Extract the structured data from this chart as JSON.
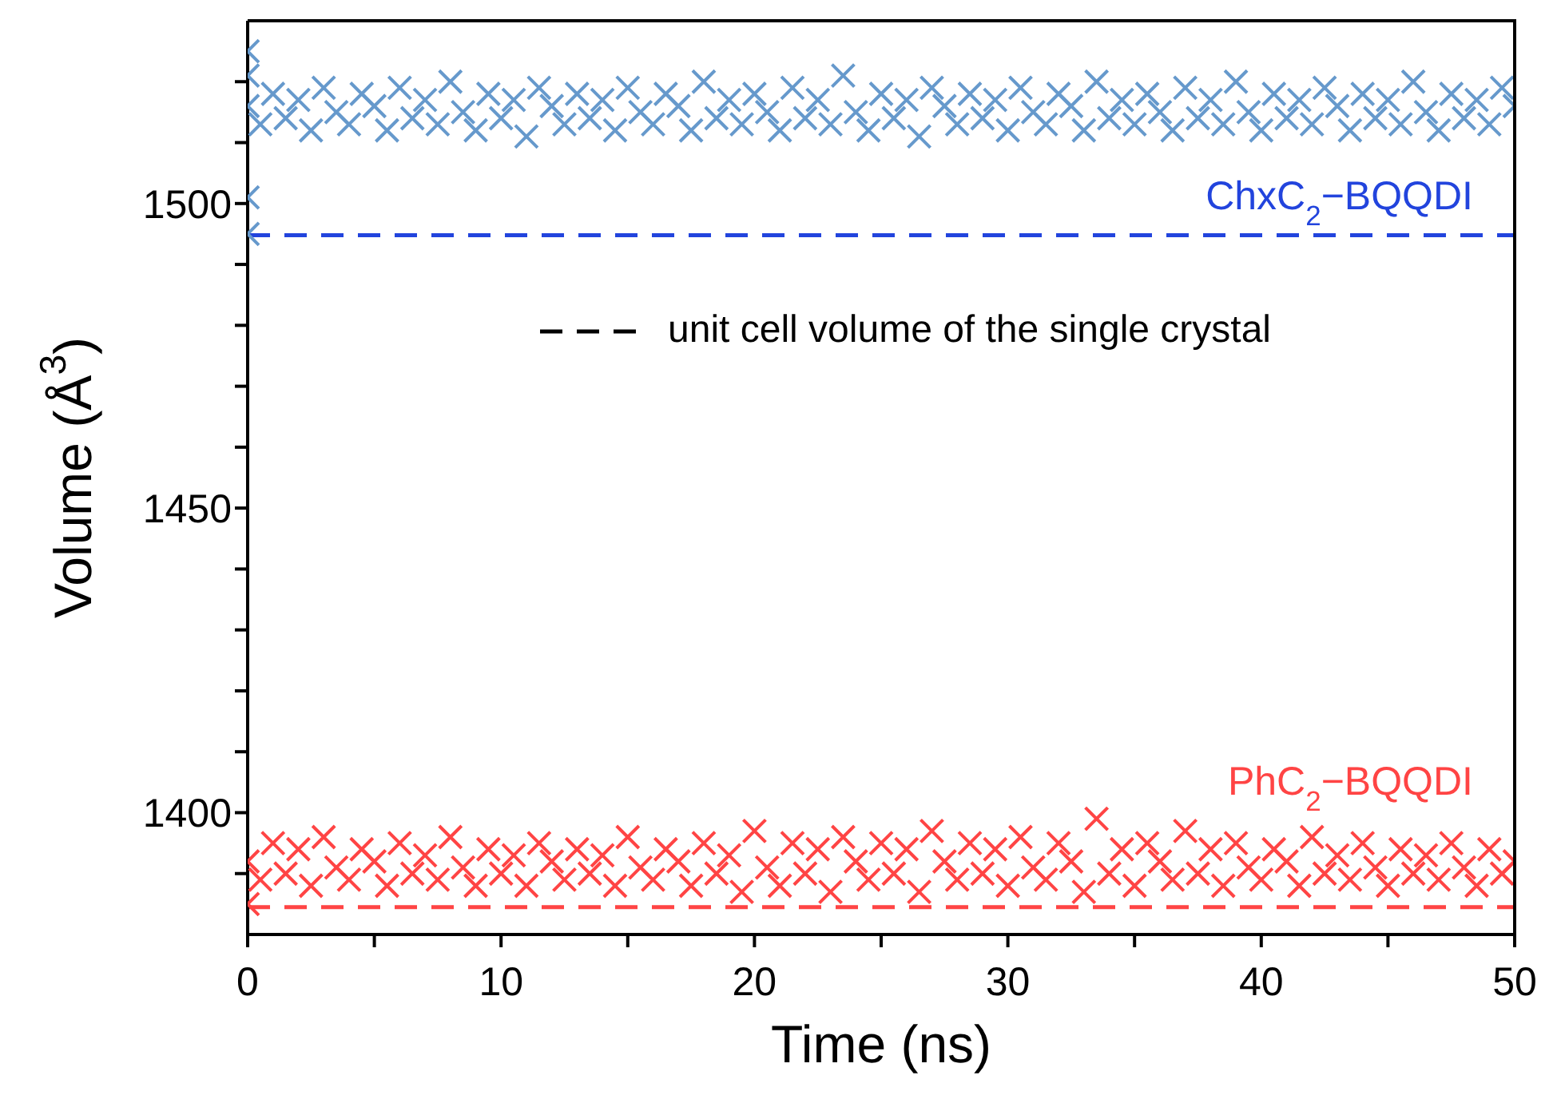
{
  "chart_data": {
    "type": "scatter",
    "xlabel": "Time (ns)",
    "ylabel": "Volume (Å$^{3}$)",
    "xlim": [
      0,
      50
    ],
    "ylim": [
      1380,
      1530
    ],
    "xticks": [
      0,
      {
        "value": 5,
        "label": null
      },
      10,
      {
        "value": 15,
        "label": null
      },
      20,
      {
        "value": 25,
        "label": null
      },
      30,
      {
        "value": 35,
        "label": null
      },
      40,
      {
        "value": 45,
        "label": null
      },
      50
    ],
    "yticks": [
      {
        "value": 1390,
        "label": null
      },
      1400,
      {
        "value": 1410,
        "label": null
      },
      {
        "value": 1420,
        "label": null
      },
      {
        "value": 1430,
        "label": null
      },
      {
        "value": 1440,
        "label": null
      },
      1450,
      {
        "value": 1460,
        "label": null
      },
      {
        "value": 1470,
        "label": null
      },
      {
        "value": 1480,
        "label": null
      },
      {
        "value": 1490,
        "label": null
      },
      1500,
      {
        "value": 1510,
        "label": null
      },
      {
        "value": 1520,
        "label": null
      }
    ],
    "marker": "cross",
    "series": [
      {
        "name": "ChxC$_{2}$−BQQDI",
        "color": "#6699cc",
        "x": [
          0,
          0,
          0,
          0,
          0,
          0.5,
          1,
          1.5,
          2,
          2.5,
          3,
          3.5,
          4,
          4.5,
          5,
          5.5,
          6,
          6.5,
          7,
          7.5,
          8,
          8.5,
          9,
          9.5,
          10,
          10.5,
          11,
          11.5,
          12,
          12.5,
          13,
          13.5,
          14,
          14.5,
          15,
          15.5,
          16,
          16.5,
          17,
          17.5,
          18,
          18.5,
          19,
          19.5,
          20,
          20.5,
          21,
          21.5,
          22,
          22.5,
          23,
          23.5,
          24,
          24.5,
          25,
          25.5,
          26,
          26.5,
          27,
          27.5,
          28,
          28.5,
          29,
          29.5,
          30,
          30.5,
          31,
          31.5,
          32,
          32.5,
          33,
          33.5,
          34,
          34.5,
          35,
          35.5,
          36,
          36.5,
          37,
          37.5,
          38,
          38.5,
          39,
          39.5,
          40,
          40.5,
          41,
          41.5,
          42,
          42.5,
          43,
          43.5,
          44,
          44.5,
          45,
          45.5,
          46,
          46.5,
          47,
          47.5,
          48,
          48.5,
          49,
          49.5,
          50
        ],
        "values": [
          1525,
          1521,
          1501,
          1495,
          1516,
          1513,
          1518,
          1514,
          1517,
          1512,
          1519,
          1515,
          1513,
          1518,
          1516,
          1512,
          1519,
          1514,
          1517,
          1513,
          1520,
          1515,
          1512,
          1518,
          1514,
          1517,
          1511,
          1519,
          1516,
          1513,
          1518,
          1514,
          1517,
          1512,
          1519,
          1515,
          1513,
          1518,
          1516,
          1512,
          1520,
          1514,
          1517,
          1513,
          1518,
          1515,
          1512,
          1519,
          1514,
          1517,
          1513,
          1521,
          1515,
          1512,
          1518,
          1514,
          1517,
          1511,
          1519,
          1516,
          1513,
          1518,
          1514,
          1517,
          1512,
          1519,
          1515,
          1513,
          1518,
          1516,
          1512,
          1520,
          1514,
          1517,
          1513,
          1518,
          1515,
          1512,
          1519,
          1514,
          1517,
          1513,
          1520,
          1515,
          1512,
          1518,
          1514,
          1517,
          1513,
          1519,
          1516,
          1512,
          1518,
          1514,
          1517,
          1513,
          1520,
          1515,
          1512,
          1518,
          1514,
          1517,
          1513,
          1519,
          1516
        ]
      },
      {
        "name": "PhC$_{2}$−BQQDI",
        "color": "#ff4444",
        "x": [
          0,
          0,
          0.5,
          1,
          1.5,
          2,
          2.5,
          3,
          3.5,
          4,
          4.5,
          5,
          5.5,
          6,
          6.5,
          7,
          7.5,
          8,
          8.5,
          9,
          9.5,
          10,
          10.5,
          11,
          11.5,
          12,
          12.5,
          13,
          13.5,
          14,
          14.5,
          15,
          15.5,
          16,
          16.5,
          17,
          17.5,
          18,
          18.5,
          19,
          19.5,
          20,
          20.5,
          21,
          21.5,
          22,
          22.5,
          23,
          23.5,
          24,
          24.5,
          25,
          25.5,
          26,
          26.5,
          27,
          27.5,
          28,
          28.5,
          29,
          29.5,
          30,
          30.5,
          31,
          31.5,
          32,
          32.5,
          33,
          33.5,
          34,
          34.5,
          35,
          35.5,
          36,
          36.5,
          37,
          37.5,
          38,
          38.5,
          39,
          39.5,
          40,
          40.5,
          41,
          41.5,
          42,
          42.5,
          43,
          43.5,
          44,
          44.5,
          45,
          45.5,
          46,
          46.5,
          47,
          47.5,
          48,
          48.5,
          49,
          49.5,
          50
        ],
        "values": [
          1385,
          1392,
          1389,
          1395,
          1390,
          1394,
          1388,
          1396,
          1391,
          1389,
          1394,
          1392,
          1388,
          1395,
          1390,
          1393,
          1389,
          1396,
          1391,
          1388,
          1394,
          1390,
          1393,
          1388,
          1395,
          1392,
          1389,
          1394,
          1390,
          1393,
          1388,
          1396,
          1391,
          1389,
          1394,
          1392,
          1388,
          1395,
          1390,
          1393,
          1387,
          1397,
          1391,
          1388,
          1395,
          1390,
          1394,
          1387,
          1396,
          1392,
          1389,
          1395,
          1390,
          1394,
          1387,
          1397,
          1392,
          1389,
          1395,
          1390,
          1394,
          1388,
          1396,
          1391,
          1389,
          1395,
          1392,
          1387,
          1399,
          1390,
          1394,
          1388,
          1395,
          1392,
          1389,
          1397,
          1390,
          1394,
          1388,
          1395,
          1391,
          1389,
          1394,
          1392,
          1388,
          1396,
          1390,
          1393,
          1389,
          1395,
          1391,
          1388,
          1394,
          1390,
          1393,
          1389,
          1395,
          1391,
          1388,
          1394,
          1390,
          1392
        ]
      }
    ],
    "ref_lines": [
      {
        "axis": "y",
        "value": 1494.8,
        "color": "#2244dd",
        "line_style": "dashed"
      },
      {
        "axis": "y",
        "value": 1384.5,
        "color": "#ff4444",
        "line_style": "dashed"
      }
    ],
    "annotations": [
      "unit cell volume of the single crystal"
    ]
  }
}
